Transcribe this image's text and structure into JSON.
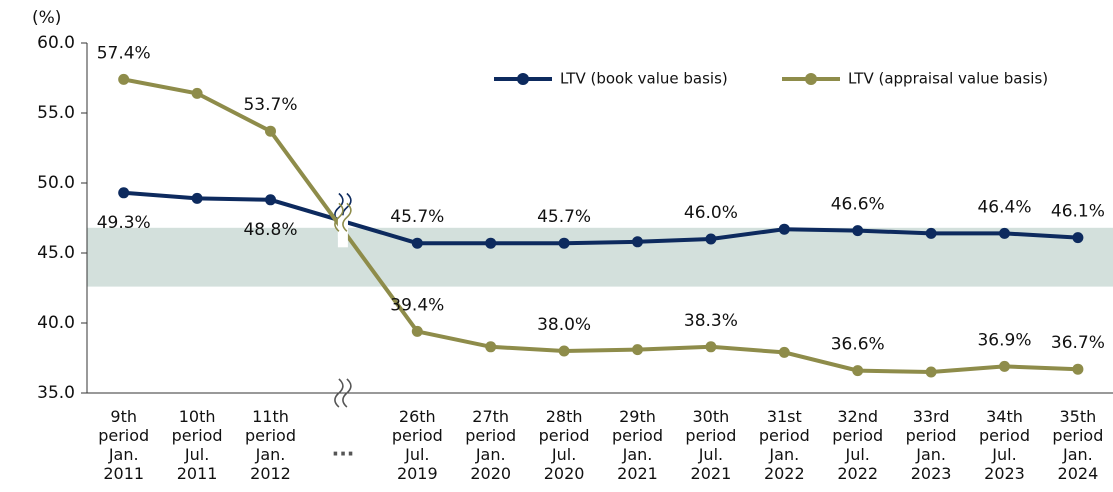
{
  "chart_data": {
    "type": "line",
    "y_unit_label": "(%)",
    "gap_label": "...",
    "categories": [
      "9th period Jan. 2011",
      "10th period Jul. 2011",
      "11th period Jan. 2012",
      "26th period Jul. 2019",
      "27th period Jan. 2020",
      "28th period Jul. 2020",
      "29th period Jan. 2021",
      "30th period Jul. 2021",
      "31st period Jan. 2022",
      "32nd period Jul. 2022",
      "33rd period Jan. 2023",
      "34th period Jul. 2023",
      "35th period Jan. 2024"
    ],
    "series": [
      {
        "name": "LTV (book value basis)",
        "color": "#0d2a5e",
        "values": [
          49.3,
          48.9,
          48.8,
          45.7,
          45.7,
          45.7,
          45.8,
          46.0,
          46.7,
          46.6,
          46.4,
          46.4,
          46.1
        ],
        "value_labels": [
          "49.3%",
          null,
          "48.8%",
          "45.7%",
          null,
          "45.7%",
          null,
          "46.0%",
          null,
          "46.6%",
          null,
          "46.4%",
          "46.1%"
        ]
      },
      {
        "name": "LTV (appraisal value basis)",
        "color": "#8e8c4a",
        "values": [
          57.4,
          56.4,
          53.7,
          39.4,
          38.3,
          38.0,
          38.1,
          38.3,
          37.9,
          36.6,
          36.5,
          36.9,
          36.7
        ],
        "value_labels": [
          "57.4%",
          null,
          "53.7%",
          "39.4%",
          null,
          "38.0%",
          null,
          "38.3%",
          null,
          "36.6%",
          null,
          "36.9%",
          "36.7%"
        ]
      }
    ],
    "band": [
      42.6,
      46.8
    ],
    "band_color": "#d3e0dc",
    "ylim": [
      35,
      60
    ],
    "yticks": [
      {
        "value": 35,
        "label": "35.0"
      },
      {
        "value": 40,
        "label": "40.0"
      },
      {
        "value": 45,
        "label": "45.0"
      },
      {
        "value": 50,
        "label": "50.0"
      },
      {
        "value": 55,
        "label": "55.0"
      },
      {
        "value": 60,
        "label": "60.0"
      }
    ],
    "legend": "top-right"
  }
}
